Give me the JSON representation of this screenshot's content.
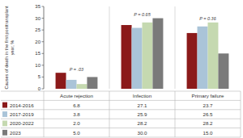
{
  "chart_data": {
    "type": "bar",
    "ylabel": "Causes of death in the first posttransplant\nyear, %",
    "categories": [
      "Acute rejection",
      "Infection",
      "Primary failure"
    ],
    "series": [
      {
        "name": "2014-2016",
        "color": "#8b1a1a",
        "values": [
          6.8,
          27.1,
          23.7
        ]
      },
      {
        "name": "2017-2019",
        "color": "#aac4d8",
        "values": [
          3.8,
          25.9,
          26.5
        ]
      },
      {
        "name": "2020-2022",
        "color": "#c5d9b0",
        "values": [
          2.0,
          28.2,
          28.2
        ]
      },
      {
        "name": "2023",
        "color": "#7a7a7a",
        "values": [
          5.0,
          30.0,
          15.0
        ]
      }
    ],
    "annotations": [
      "P = .03",
      "P = 0.65",
      "P = 0.36"
    ],
    "table": [
      [
        "6.8",
        "27.1",
        "23.7"
      ],
      [
        "3.8",
        "25.9",
        "26.5"
      ],
      [
        "2.0",
        "28.2",
        "28.2"
      ],
      [
        "5.0",
        "30.0",
        "15.0"
      ]
    ],
    "ylim": [
      0,
      35
    ],
    "yticks": [
      0,
      5,
      10,
      15,
      20,
      25,
      30,
      35
    ],
    "grid": false,
    "tick_labels": "y"
  }
}
